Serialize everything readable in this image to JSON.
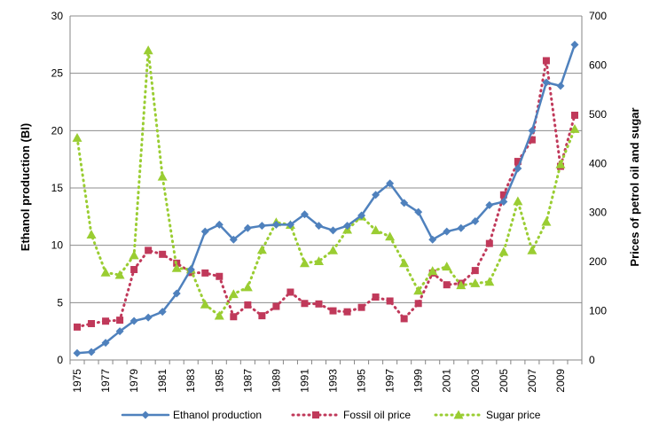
{
  "chart_data": {
    "type": "line",
    "x": [
      1975,
      1976,
      1977,
      1978,
      1979,
      1980,
      1981,
      1982,
      1983,
      1984,
      1985,
      1986,
      1987,
      1988,
      1989,
      1990,
      1991,
      1992,
      1993,
      1994,
      1995,
      1996,
      1997,
      1998,
      1999,
      2000,
      2001,
      2002,
      2003,
      2004,
      2005,
      2006,
      2007,
      2008,
      2009,
      2010
    ],
    "xticks": [
      "1975",
      "1977",
      "1979",
      "1981",
      "1983",
      "1985",
      "1987",
      "1989",
      "1991",
      "1993",
      "1995",
      "1997",
      "1999",
      "2001",
      "2003",
      "2005",
      "2007",
      "2009"
    ],
    "ylabel": "Ethanol production (Bl)",
    "ylabel_right": "Prices of petrol oil and sugar",
    "ylim": [
      0,
      30
    ],
    "ylim_right": [
      0,
      700
    ],
    "yticks": [
      "0",
      "5",
      "10",
      "15",
      "20",
      "25",
      "30"
    ],
    "yticks_right": [
      "0",
      "100",
      "200",
      "300",
      "400",
      "500",
      "600",
      "700"
    ],
    "grid": "horizontal",
    "legend_position": "bottom",
    "series": [
      {
        "name": "Ethanol production",
        "axis": "left",
        "color": "#4f81bd",
        "style": "solid",
        "marker": "diamond",
        "values": [
          0.6,
          0.7,
          1.5,
          2.5,
          3.4,
          3.7,
          4.2,
          5.8,
          7.9,
          11.2,
          11.8,
          10.5,
          11.5,
          11.7,
          11.8,
          11.8,
          12.7,
          11.7,
          11.3,
          11.7,
          12.6,
          14.4,
          15.4,
          13.7,
          12.9,
          10.5,
          11.2,
          11.5,
          12.1,
          13.5,
          13.8,
          16.7,
          20.0,
          24.2,
          23.9,
          27.5
        ]
      },
      {
        "name": "Fossil oil price",
        "axis": "right",
        "color": "#c0395a",
        "style": "dotted",
        "marker": "square",
        "values": [
          67,
          74,
          79,
          81,
          184,
          223,
          215,
          197,
          178,
          177,
          170,
          88,
          112,
          90,
          109,
          138,
          115,
          114,
          100,
          98,
          107,
          128,
          120,
          84,
          115,
          177,
          153,
          156,
          182,
          237,
          336,
          404,
          448,
          609,
          394,
          498
        ]
      },
      {
        "name": "Sugar price",
        "axis": "right",
        "color": "#9acd32",
        "style": "dotted",
        "marker": "triangle",
        "values": [
          452,
          255,
          178,
          173,
          213,
          630,
          373,
          187,
          184,
          113,
          90,
          134,
          148,
          224,
          280,
          275,
          197,
          201,
          223,
          265,
          292,
          264,
          251,
          197,
          141,
          181,
          190,
          152,
          156,
          159,
          220,
          323,
          223,
          281,
          398,
          470
        ]
      }
    ]
  }
}
